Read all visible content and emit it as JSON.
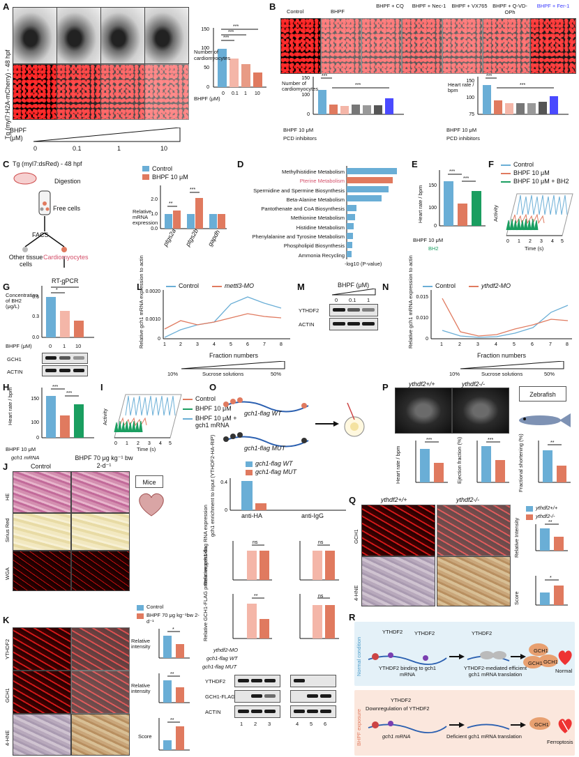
{
  "panels": [
    "A",
    "B",
    "C",
    "D",
    "E",
    "F",
    "G",
    "H",
    "I",
    "J",
    "K",
    "L",
    "M",
    "N",
    "O",
    "P",
    "Q",
    "R"
  ],
  "colors": {
    "blue": "#6aaed6",
    "salmon": "#e07a5f",
    "green": "#1a9e60",
    "pink": "#f4b6a8",
    "gray": "#777777",
    "fer": "#4a4aff",
    "normal_bg": "#e4f1f8",
    "bhpf_bg": "#fbe7dd"
  },
  "A": {
    "ylabel": "Tg (myl7:H2A-mCherry) - 48 hpf",
    "bhpf": "BHPF",
    "unit": "(μM)",
    "doses": [
      "0",
      "0.1",
      "1",
      "10"
    ],
    "chart_ylabel": "Number of cardiomyocytes",
    "xlabel": "BHPF (μM)",
    "sig": [
      "***",
      "***",
      "***"
    ]
  },
  "B": {
    "conds": [
      "Control",
      "BHPF",
      "BHPF + CQ",
      "BHPF + Nec-1",
      "BHPF + VX765",
      "BHPF + Q-VD-OPh",
      "BHPF + Fer-1"
    ],
    "ylab1": "Number of cardiomyocytes",
    "ylab2": "Heart rate / bpm",
    "row1": "BHPF 10 μM",
    "row2": "PCD inhibitors",
    "inh": [
      "CQ",
      "Nec-1",
      "VX765",
      "Q-VD-OPh",
      "Fer-1"
    ],
    "sig": [
      "***",
      "***"
    ]
  },
  "C": {
    "title": "Tg (myl7:dsRed) - 48 hpf",
    "steps": [
      "Digestion",
      "Free cells",
      "FACS",
      "Other tissue cells",
      "Cardiomyocytes",
      "RT-qPCR"
    ],
    "legend": [
      "Control",
      "BHPF 10 μM"
    ],
    "ylabel": "Relative mRNA expression",
    "genes": [
      "ptgs2a",
      "ptgs2b",
      "gapdh"
    ],
    "sig": [
      "**",
      "***"
    ]
  },
  "D": {
    "paths": [
      "Methylhistidine Metabolism",
      "Pterine Metabolism",
      "Spermidine and Spermine Biosynthesis",
      "Beta-Alanine Metabolism",
      "Pantothenate and CoA Biosynthesis",
      "Methionine Metabolism",
      "Histidine Metabolism",
      "Phenylalanine and Tyrosine Metabolism",
      "Phospholipid Biosynthesis",
      "Ammonia Recycling"
    ],
    "xlabel": "-log10 (P-value)"
  },
  "E": {
    "ylabel": "Heart rate / bpm",
    "row1": "BHPF 10 μM",
    "row2": "BH2",
    "sig": [
      "***",
      "***"
    ]
  },
  "F": {
    "legend": [
      "Control",
      "BHPF 10 μM",
      "BHPF 10 μM + BH2"
    ],
    "ylabel": "Activity",
    "xlabel": "Time (s)"
  },
  "G": {
    "ylabel": "Concentration of BH2 (μg/L)",
    "xlabel": "BHPF (μM)",
    "doses": [
      "0",
      "1",
      "10"
    ],
    "sig": [
      "*",
      "**"
    ],
    "blots": [
      "GCH1",
      "ACTIN"
    ]
  },
  "H": {
    "ylabel": "Heart rate / bpm",
    "row1": "BHPF 10 μM",
    "row2": "gch1 mRNA",
    "sig": [
      "***",
      "***"
    ]
  },
  "I": {
    "legend": [
      "Control",
      "BHPF 10 μM",
      "BHPF 10 μM + gch1 mRNA"
    ],
    "ylabel": "Activity",
    "xlabel": "Time (s)"
  },
  "J": {
    "cols": [
      "Control",
      "BHPF 70 μg kg⁻¹ bw 2-d⁻¹"
    ],
    "rows": [
      "HE",
      "Sirius Red",
      "WGA"
    ],
    "mice": "Mice",
    "legend": [
      "Control",
      "BHPF 70 μg kg⁻¹bw 2-d⁻¹"
    ]
  },
  "K": {
    "rows": [
      "YTHDF2",
      "GCH1",
      "4-HNE"
    ],
    "ylabs": [
      "Relative intensity",
      "Relative intensity",
      "Score"
    ],
    "sig": [
      "*",
      "**",
      "**"
    ]
  },
  "L": {
    "legend": [
      "Control",
      "mettl3-MO"
    ],
    "ylabel": "Relative gch1 mRNA expression to actin",
    "xlabel": "Fraction numbers",
    "grad": [
      "10%",
      "Sucrose solutions",
      "50%"
    ]
  },
  "M": {
    "title": "BHPF (μM)",
    "doses": [
      "0",
      "0.1",
      "1"
    ],
    "blots": [
      "YTHDF2",
      "ACTIN"
    ]
  },
  "N": {
    "legend": [
      "Control",
      "ythdf2-MO"
    ],
    "ylabel": "Relative gch1 mRNA expression to actin",
    "xlabel": "Fraction numbers",
    "grad": [
      "10%",
      "Sucrose solutions",
      "50%"
    ]
  },
  "O": {
    "wt": "gch1-flag WT",
    "mut": "gch1-flag MUT"
  },
  "P": {
    "geno": [
      "ythdf2+/+",
      "ythdf2-/-"
    ],
    "zebra": "Zebrafish",
    "ylabs": [
      "Heart rate / bpm",
      "Ejection fraction (%)",
      "Fractional shortening (%)"
    ],
    "sig": [
      "***",
      "***",
      "**"
    ]
  },
  "RIP": {
    "legend": [
      "gch1-flag WT",
      "gch1-flag MUT"
    ],
    "ylabel": "gch1 enrichment to input (YTHDF2-HA-RIP)",
    "xcats": [
      "anti-HA",
      "anti-IgG"
    ],
    "rna_ylabel": "Relative gch1-flag RNA expression",
    "prot_ylabel": "Relative GCH1-FLAG protein expression",
    "sig_rna": [
      "ns",
      "ns"
    ],
    "sig_prot": [
      "**",
      "ns"
    ],
    "rows": [
      "ythdf2-MO",
      "gch1-flag WT",
      "gch1-flag MUT"
    ],
    "blots": [
      "YTHDF2",
      "GCH1-FLAG",
      "ACTIN"
    ],
    "lanes": [
      "1",
      "2",
      "3",
      "4",
      "5",
      "6"
    ]
  },
  "Q": {
    "geno": [
      "ythdf2+/+",
      "ythdf2-/-"
    ],
    "rows": [
      "GCH1",
      "4-HNE"
    ],
    "ylabs": [
      "Relative Intensity",
      "Score"
    ],
    "sig": [
      "**",
      "*"
    ],
    "legend": [
      "ythdf2+/+",
      "ythdf2-/-"
    ]
  },
  "R": {
    "normal": "Normal condition",
    "bhpf": "BHPF exposure",
    "n1": "YTHDF2 binding to gch1 mRNA",
    "n2": "YTHDF2-mediated efficient gch1 mRNA translation",
    "b1": "Downregulation of YTHDF2",
    "b2": "gch1 mRNA",
    "b3": "Deficient gch1 mRNA translation",
    "out1": "Normal",
    "out2": "Ferroptosis",
    "prot": "GCH1",
    "ythdf2": "YTHDF2"
  }
}
